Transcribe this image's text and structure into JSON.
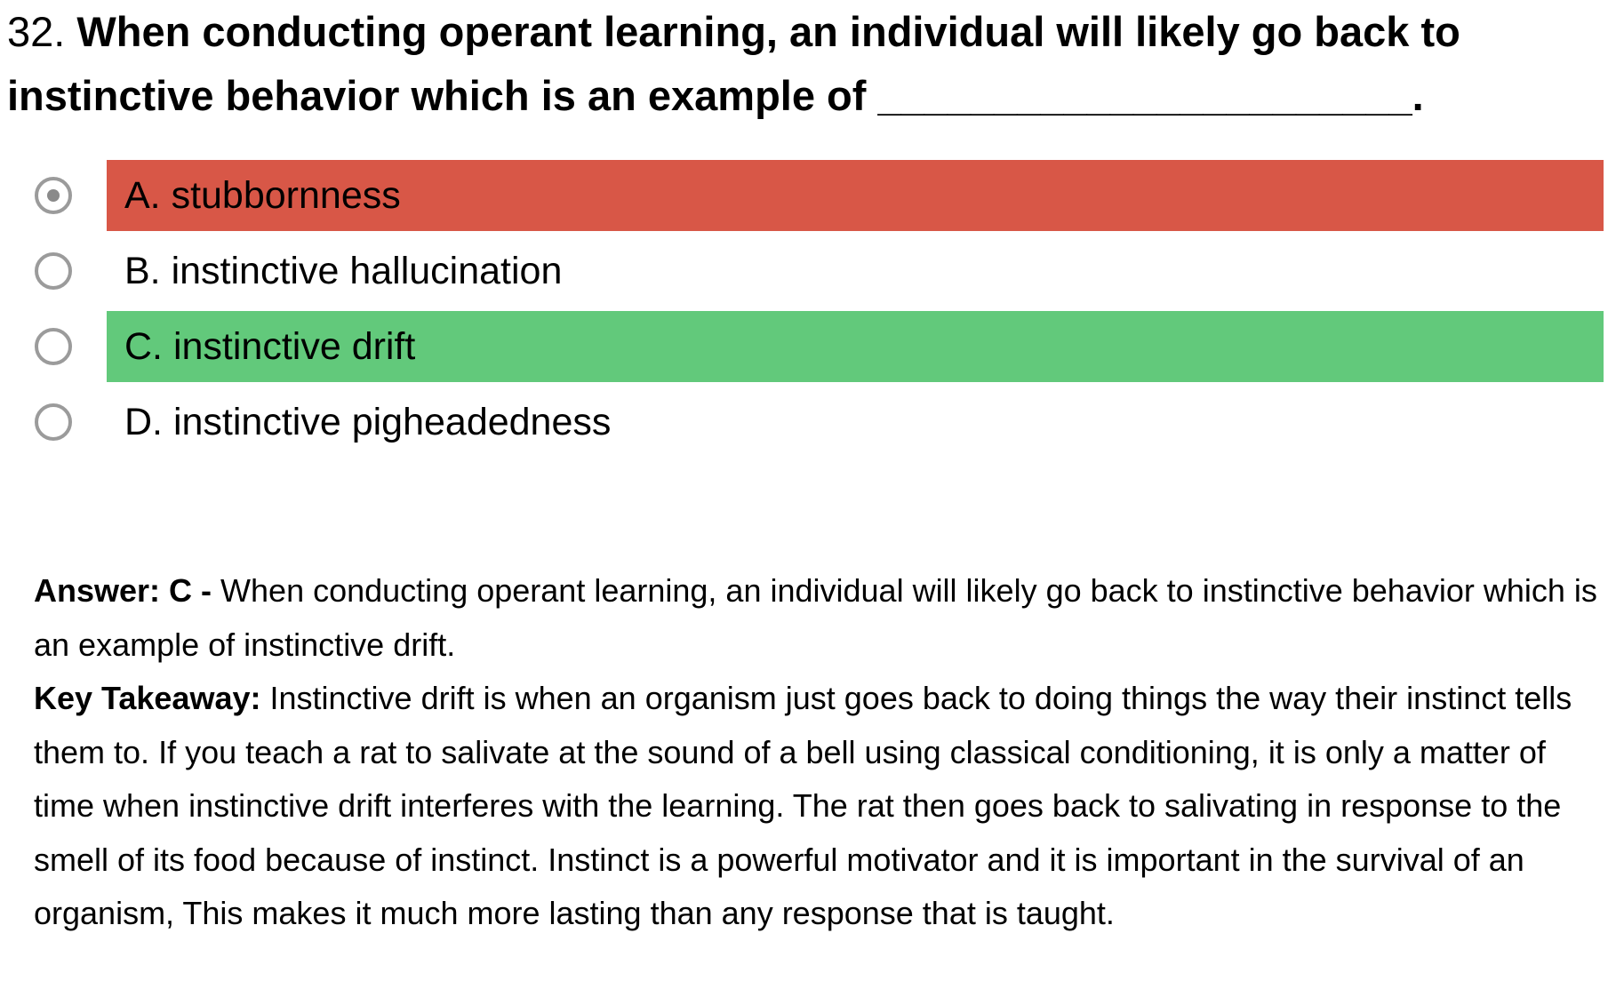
{
  "question": {
    "number": "32.",
    "text": "When conducting operant learning, an individual will likely go back to instinctive behavior which is an example of _______________________."
  },
  "options": [
    {
      "label": "A. stubbornness",
      "status": "wrong",
      "selected": true
    },
    {
      "label": "B. instinctive hallucination",
      "status": "none",
      "selected": false
    },
    {
      "label": "C. instinctive drift",
      "status": "correct",
      "selected": false
    },
    {
      "label": "D. instinctive pigheadedness",
      "status": "none",
      "selected": false
    }
  ],
  "explanation": {
    "answer_label": "Answer: C -",
    "answer_text": "When conducting operant learning, an individual will likely go back to instinctive behavior which is an example of instinctive drift.",
    "takeaway_label": "Key Takeaway:",
    "takeaway_text": "Instinctive drift is when an organism just goes back to doing things the way their instinct tells them to. If you teach a rat to salivate at the sound of a bell using classical conditioning, it is only a matter of time when instinctive drift interferes with the learning. The rat then goes back to salivating in response to the smell of its food because of instinct. Instinct is a powerful motivator and it is important in the survival of an organism, This makes it much more lasting than any response that is taught."
  },
  "colors": {
    "wrong": "#d85747",
    "correct": "#62c97b",
    "radio_border": "#9b9b9b"
  }
}
